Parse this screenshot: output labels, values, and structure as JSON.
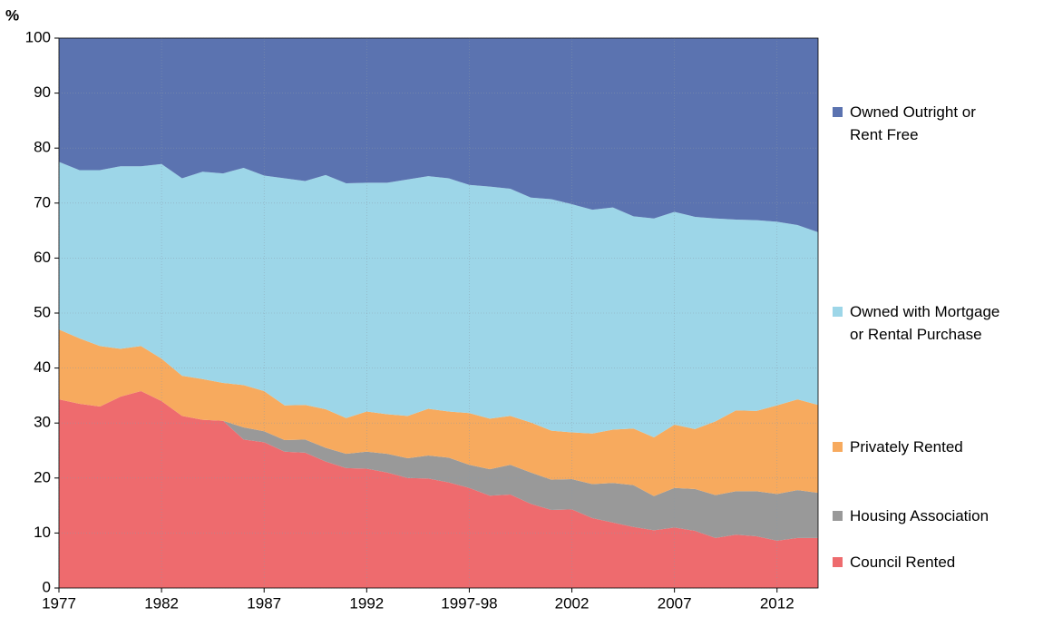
{
  "chart_data": {
    "type": "stacked_area",
    "y_label": "%",
    "categories": [
      "1977",
      null,
      null,
      null,
      null,
      "1982",
      null,
      null,
      null,
      null,
      "1987",
      null,
      null,
      null,
      null,
      "1992",
      null,
      null,
      null,
      null,
      "1997-98",
      null,
      null,
      null,
      null,
      "2002",
      null,
      null,
      null,
      null,
      "2007",
      null,
      null,
      null,
      null,
      "2012",
      null,
      null
    ],
    "series": [
      {
        "name": "Council Rented",
        "color": "#ee6b6e",
        "values": [
          34.3,
          33.5,
          33,
          34.8,
          35.8,
          34,
          31.3,
          30.6,
          30.4,
          27,
          26.5,
          24.8,
          24.6,
          23,
          21.8,
          21.7,
          21,
          20,
          19.9,
          19.2,
          18.2,
          16.8,
          17,
          15.3,
          14.2,
          14.3,
          12.7,
          11.9,
          11.1,
          10.5,
          11,
          10.4,
          9.1,
          9.7,
          9.4,
          8.6,
          9.1,
          9.1
        ]
      },
      {
        "name": "Housing Association",
        "color": "#999999",
        "values": [
          0,
          0,
          0,
          0,
          0,
          0,
          0,
          0,
          0,
          2.2,
          2,
          2.1,
          2.4,
          2.5,
          2.6,
          3.1,
          3.4,
          3.6,
          4.2,
          4.5,
          4.2,
          4.8,
          5.4,
          5.7,
          5.5,
          5.5,
          6.2,
          7.2,
          7.6,
          6.2,
          7.2,
          7.6,
          7.8,
          7.9,
          8.2,
          8.5,
          8.7,
          8.2
        ]
      },
      {
        "name": "Privately Rented",
        "color": "#f7aa5e",
        "values": [
          12.7,
          11.9,
          11,
          8.7,
          8.2,
          7.7,
          7.3,
          7.4,
          6.9,
          7.7,
          7.3,
          6.3,
          6.3,
          7,
          6.5,
          7.3,
          7.2,
          7.7,
          8.5,
          8.4,
          9.4,
          9.2,
          8.9,
          9.1,
          8.9,
          8.5,
          9.2,
          9.7,
          10.3,
          10.7,
          11.5,
          10.9,
          13.4,
          14.7,
          14.6,
          16.1,
          16.5,
          16
        ]
      },
      {
        "name": "Owned with Mortgage\nor Rental Purchase",
        "color": "#9dd6e8",
        "values": [
          30.5,
          30.6,
          32,
          33.2,
          32.7,
          35.4,
          35.9,
          37.7,
          38.1,
          39.5,
          39.2,
          41.3,
          40.7,
          42.6,
          42.7,
          41.6,
          42.1,
          43,
          42.3,
          42.4,
          41.5,
          42.2,
          41.3,
          40.9,
          42.1,
          41.5,
          40.7,
          40.4,
          38.6,
          39.8,
          38.7,
          38.6,
          36.9,
          34.7,
          34.7,
          33.4,
          31.7,
          31.4
        ]
      },
      {
        "name": "Owned Outright or\nRent Free",
        "color": "#5b73b0",
        "values": [
          22.5,
          24,
          24,
          23.3,
          23.3,
          22.9,
          25.5,
          24.3,
          24.6,
          23.6,
          25,
          25.5,
          26,
          24.9,
          26.4,
          26.3,
          26.3,
          25.7,
          25.1,
          25.5,
          26.7,
          27,
          27.4,
          29,
          29.3,
          30.2,
          31.2,
          30.8,
          32.4,
          32.8,
          31.6,
          32.5,
          32.8,
          33,
          33.1,
          33.4,
          34,
          35.3
        ]
      }
    ],
    "ylim": [
      0,
      100
    ],
    "yticks": [
      0,
      10,
      20,
      30,
      40,
      50,
      60,
      70,
      80,
      90,
      100
    ],
    "grid": true,
    "legend": "right"
  }
}
